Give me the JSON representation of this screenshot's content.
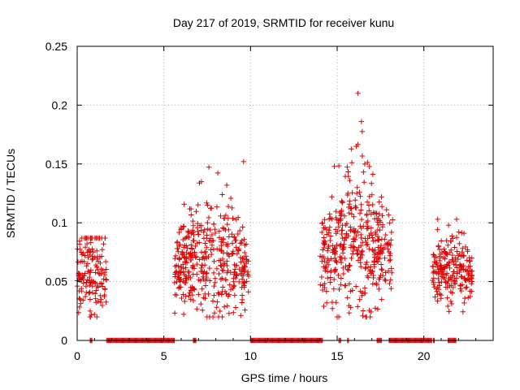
{
  "chart_data": {
    "type": "scatter",
    "title": "Day 217 of 2019, SRMTID for receiver kunu",
    "xlabel": "GPS time / hours",
    "ylabel": "SRMTID / TECUs",
    "xlim": [
      0,
      24
    ],
    "ylim": [
      0,
      0.25
    ],
    "xticks": [
      0,
      5,
      10,
      15,
      20
    ],
    "xtick_labels": [
      "0",
      "5",
      "10",
      "15",
      "20"
    ],
    "yticks": [
      0,
      0.05,
      0.1,
      0.15,
      0.2,
      0.25
    ],
    "ytick_labels": [
      "0",
      "0.05",
      "0.1",
      "0.15",
      "0.2",
      "0.25"
    ],
    "grid": true,
    "marker": "+",
    "color": "#e00000",
    "clusters": [
      {
        "x_start": 0.0,
        "x_end": 1.7,
        "y_mean": 0.055,
        "y_spread": 0.018,
        "density": 90,
        "peak": 0.087
      },
      {
        "x_start": 5.6,
        "x_end": 9.9,
        "y_mean": 0.06,
        "y_spread": 0.02,
        "density": 95,
        "peak": 0.152
      },
      {
        "x_start": 14.0,
        "x_end": 18.2,
        "y_mean": 0.07,
        "y_spread": 0.022,
        "density": 95,
        "peak": 0.21
      },
      {
        "x_start": 20.5,
        "x_end": 22.8,
        "y_mean": 0.055,
        "y_spread": 0.012,
        "density": 90,
        "peak": 0.103
      }
    ],
    "peaks": [
      {
        "x": 16.2,
        "y": 0.21
      },
      {
        "x": 16.4,
        "y": 0.186
      },
      {
        "x": 9.6,
        "y": 0.152
      },
      {
        "x": 16.1,
        "y": 0.165
      },
      {
        "x": 15.1,
        "y": 0.02
      },
      {
        "x": 20.8,
        "y": 0.103
      }
    ],
    "zero_segments": [
      [
        0.75,
        0.9
      ],
      [
        1.7,
        5.6
      ],
      [
        6.7,
        6.85
      ],
      [
        10.0,
        14.2
      ],
      [
        15.1,
        15.25
      ],
      [
        15.6,
        15.7
      ],
      [
        17.3,
        17.6
      ],
      [
        18.0,
        20.5
      ],
      [
        20.55,
        20.65
      ],
      [
        21.4,
        21.9
      ]
    ]
  }
}
